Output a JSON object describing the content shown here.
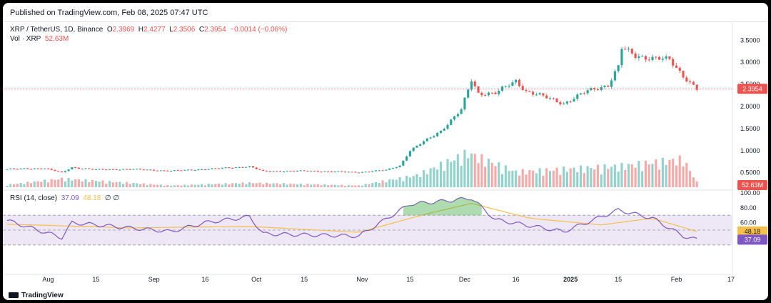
{
  "published": "Published on TradingView.com, Feb 08, 2025 07:47 UTC",
  "legend": {
    "symbol": "XRP / TetherUS, 1D, Binance",
    "o_label": "O",
    "o": "2.3969",
    "h_label": "H",
    "h": "2.4277",
    "l_label": "L",
    "l": "2.3506",
    "c_label": "C",
    "c": "2.3954",
    "change": "−0.0014 (−0.06%)",
    "vol_label": "Vol · XRP",
    "vol_value": "52.63M",
    "rsi_label": "RSI (14, close)",
    "rsi_value": "37.09",
    "rsi_ma_value": "48.18",
    "rsi_extra": "∅ ∅"
  },
  "price_axis_labels": [
    "3.5000",
    "3.0000",
    "2.5000",
    "2.0000",
    "1.5000",
    "1.0000",
    "0.5000"
  ],
  "rsi_axis_labels": [
    "100.00",
    "80.00",
    "60.00"
  ],
  "badges": {
    "last_price": "2.3954",
    "volume": "52.63M",
    "rsi_ma": "48.18",
    "rsi": "37.09"
  },
  "time_axis_labels": [
    "Aug",
    "15",
    "Sep",
    "16",
    "Oct",
    "15",
    "Nov",
    "15",
    "Dec",
    "16",
    "2025",
    "15",
    "Feb",
    "17"
  ],
  "footer": {
    "brand": "TradingView"
  },
  "colors": {
    "up": "#26a69a",
    "down": "#ef5350",
    "rsi": "#7e57c2",
    "rsi_ma": "#f7c04a",
    "rsi_band": "#ede7f6"
  },
  "chart_data": [
    {
      "type": "candlestick",
      "title": "XRP / TetherUS, 1D, Binance",
      "x_range": [
        "2024-07-20",
        "2025-02-17"
      ],
      "ylim": [
        0.3,
        3.7
      ],
      "close_series": [
        [
          "2024-07-20",
          0.58
        ],
        [
          "2024-07-31",
          0.6
        ],
        [
          "2024-08-05",
          0.5
        ],
        [
          "2024-08-08",
          0.62
        ],
        [
          "2024-08-15",
          0.57
        ],
        [
          "2024-08-25",
          0.58
        ],
        [
          "2024-09-06",
          0.54
        ],
        [
          "2024-09-16",
          0.58
        ],
        [
          "2024-09-29",
          0.64
        ],
        [
          "2024-10-03",
          0.53
        ],
        [
          "2024-10-15",
          0.54
        ],
        [
          "2024-10-31",
          0.51
        ],
        [
          "2024-11-08",
          0.56
        ],
        [
          "2024-11-12",
          0.66
        ],
        [
          "2024-11-15",
          1.0
        ],
        [
          "2024-11-18",
          1.15
        ],
        [
          "2024-11-24",
          1.45
        ],
        [
          "2024-11-30",
          1.92
        ],
        [
          "2024-12-03",
          2.6
        ],
        [
          "2024-12-05",
          2.3
        ],
        [
          "2024-12-10",
          2.3
        ],
        [
          "2024-12-16",
          2.58
        ],
        [
          "2024-12-19",
          2.35
        ],
        [
          "2024-12-30",
          2.07
        ],
        [
          "2025-01-06",
          2.35
        ],
        [
          "2025-01-12",
          2.49
        ],
        [
          "2025-01-15",
          2.9
        ],
        [
          "2025-01-16",
          3.32
        ],
        [
          "2025-01-20",
          3.15
        ],
        [
          "2025-01-30",
          3.05
        ],
        [
          "2025-02-03",
          2.7
        ],
        [
          "2025-02-07",
          2.4
        ]
      ],
      "volume_series": [
        [
          "2024-07-20",
          0.07
        ],
        [
          "2024-08-05",
          0.25
        ],
        [
          "2024-09-06",
          0.05
        ],
        [
          "2024-09-29",
          0.13
        ],
        [
          "2024-10-31",
          0.05
        ],
        [
          "2024-11-17",
          0.35
        ],
        [
          "2024-12-02",
          1.0
        ],
        [
          "2024-12-16",
          0.45
        ],
        [
          "2025-01-16",
          0.62
        ],
        [
          "2025-02-03",
          0.82
        ],
        [
          "2025-02-07",
          0.15
        ]
      ],
      "rsi_series": [
        [
          "2024-07-20",
          63
        ],
        [
          "2024-08-05",
          40
        ],
        [
          "2024-08-08",
          60
        ],
        [
          "2024-09-06",
          48
        ],
        [
          "2024-09-16",
          60
        ],
        [
          "2024-09-29",
          68
        ],
        [
          "2024-10-03",
          45
        ],
        [
          "2024-10-31",
          42
        ],
        [
          "2024-11-15",
          85
        ],
        [
          "2024-11-25",
          89
        ],
        [
          "2024-12-03",
          93
        ],
        [
          "2024-12-10",
          64
        ],
        [
          "2024-12-30",
          48
        ],
        [
          "2025-01-15",
          77
        ],
        [
          "2025-01-25",
          66
        ],
        [
          "2025-02-03",
          42
        ],
        [
          "2025-02-07",
          37
        ]
      ],
      "rsi_ma_series": [
        [
          "2024-07-20",
          58
        ],
        [
          "2024-08-25",
          53
        ],
        [
          "2024-09-29",
          55
        ],
        [
          "2024-10-31",
          47
        ],
        [
          "2024-11-20",
          72
        ],
        [
          "2024-12-03",
          86
        ],
        [
          "2024-12-20",
          66
        ],
        [
          "2025-01-10",
          57
        ],
        [
          "2025-01-25",
          66
        ],
        [
          "2025-02-07",
          48
        ]
      ],
      "rsi_levels": {
        "upper": 70,
        "middle": 50,
        "lower": 30
      }
    }
  ]
}
